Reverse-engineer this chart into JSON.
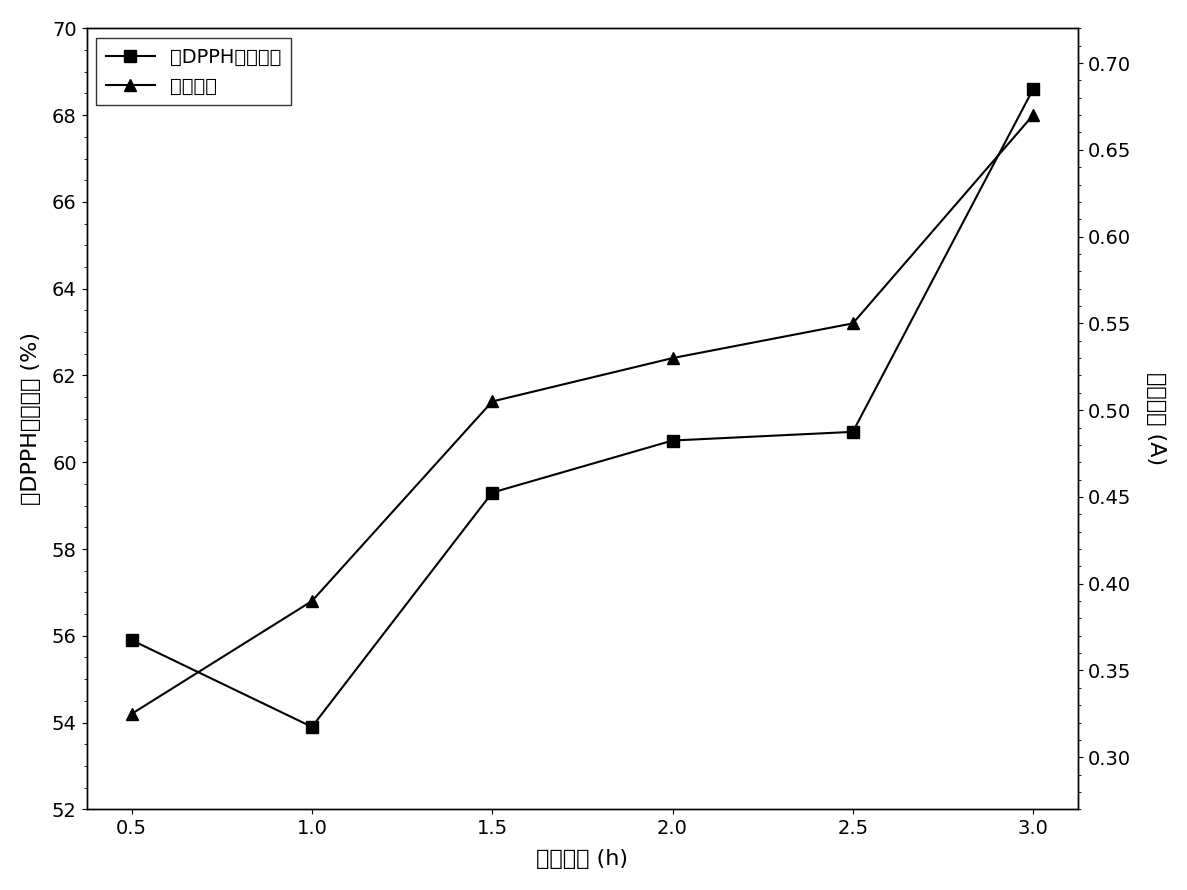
{
  "x": [
    0.5,
    1.0,
    1.5,
    2.0,
    2.5,
    3.0
  ],
  "dpph": [
    55.9,
    53.9,
    59.3,
    60.5,
    60.7,
    68.6
  ],
  "flavone": [
    0.325,
    0.39,
    0.505,
    0.53,
    0.55,
    0.67
  ],
  "xlabel": "酶解时间 (h)",
  "ylabel_left": "对DPPH的清除率 (%)",
  "ylabel_right": "黄酮浓度 (A)",
  "legend_dpph": "对DPPH的清除率",
  "legend_flavone": "黄酮浓度",
  "ylim_left": [
    52,
    70
  ],
  "ylim_right": [
    0.27,
    0.72
  ],
  "yticks_left": [
    52,
    54,
    56,
    58,
    60,
    62,
    64,
    66,
    68,
    70
  ],
  "yticks_right": [
    0.3,
    0.35,
    0.4,
    0.45,
    0.5,
    0.55,
    0.6,
    0.65,
    0.7
  ],
  "xticks": [
    0.5,
    1.0,
    1.5,
    2.0,
    2.5,
    3.0
  ],
  "xtick_labels": [
    "0.5",
    "1.0",
    "1.5",
    "2.0",
    "2.5",
    "3.0"
  ],
  "line_color": "#000000",
  "marker_square": "s",
  "marker_triangle": "^",
  "markersize": 9,
  "linewidth": 1.5,
  "background_color": "#ffffff",
  "label_fontsize": 16,
  "tick_fontsize": 14,
  "legend_fontsize": 14,
  "figwidth": 11.87,
  "figheight": 8.9,
  "dpi": 100
}
